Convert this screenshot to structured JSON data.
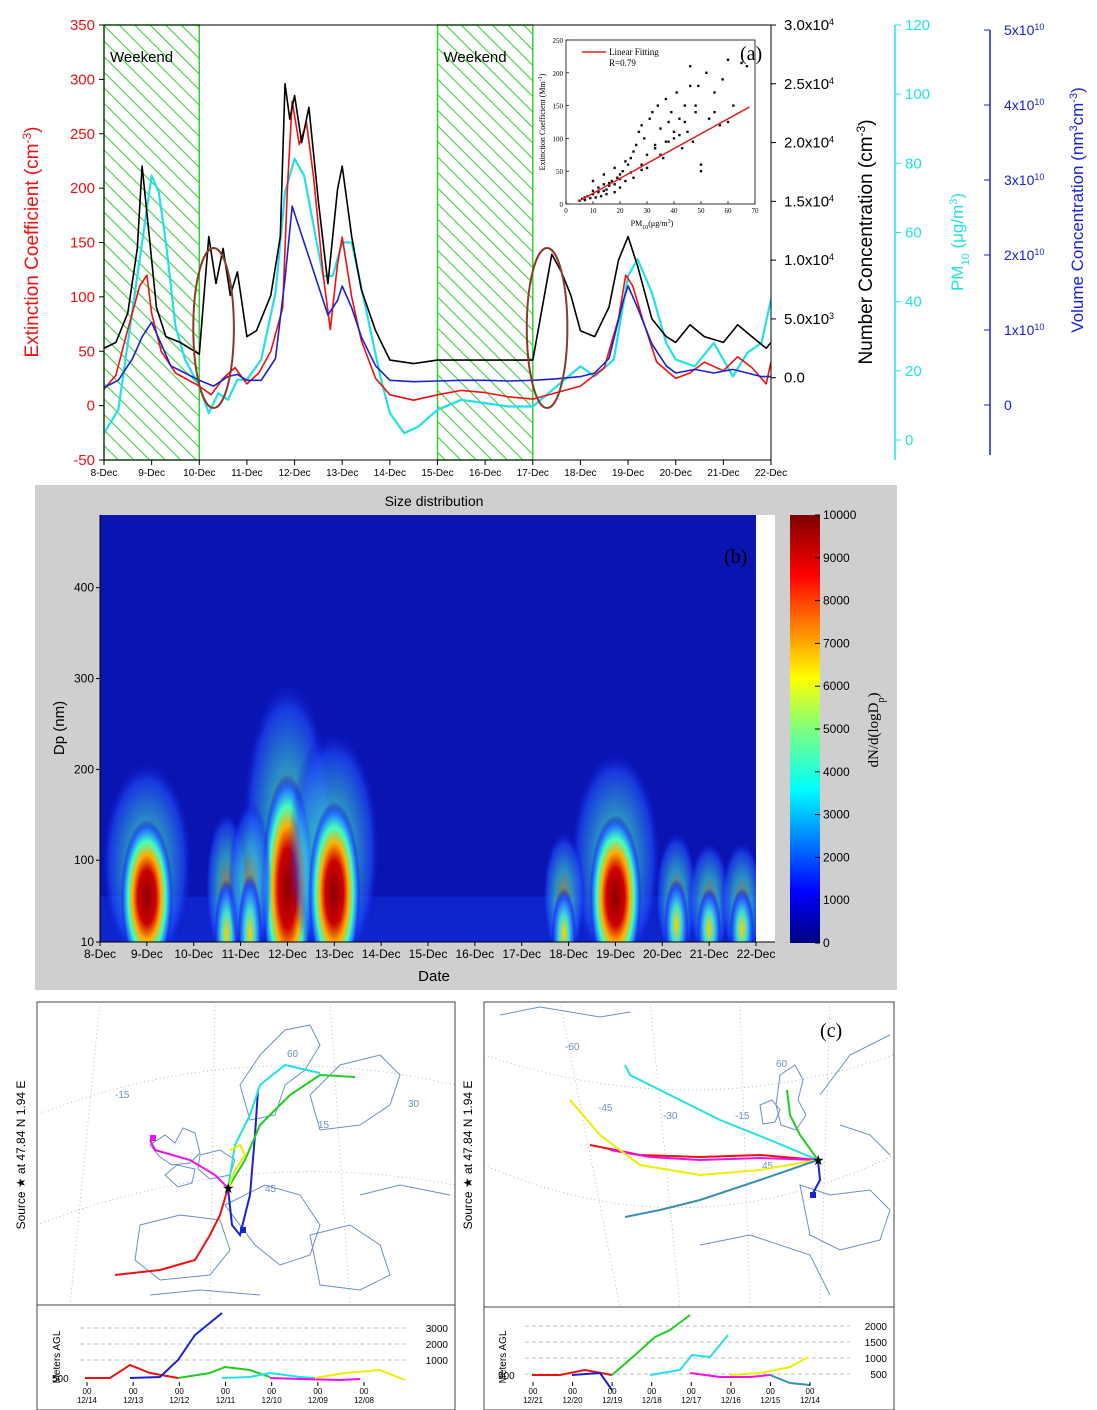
{
  "colors": {
    "extinction": "#ee1111",
    "number": "#000000",
    "pm10": "#22e0e8",
    "volume": "#1a22d0",
    "weekend_fill": "#33cc33",
    "ellipse": "#8b3a2a",
    "map_coast": "#6a8fc8"
  },
  "chart_data": [
    {
      "type": "line",
      "panel_label": "(a)",
      "x_ticks": [
        "8-Dec",
        "9-Dec",
        "10-Dec",
        "11-Dec",
        "12-Dec",
        "13-Dec",
        "14-Dec",
        "15-Dec",
        "16-Dec",
        "17-Dec",
        "18-Dec",
        "19-Dec",
        "20-Dec",
        "21-Dec",
        "22-Dec"
      ],
      "xlim_days": [
        8,
        22
      ],
      "annotations": [
        "Weekend",
        "Weekend"
      ],
      "weekend_spans": [
        [
          8,
          10
        ],
        [
          15,
          17
        ]
      ],
      "circled_spans": [
        [
          10.0,
          10.6
        ],
        [
          17.0,
          17.6
        ]
      ],
      "axes": {
        "extinction": {
          "label": "Extinction Coefficient (cm",
          "label_sup": "-3",
          "label_end": ")",
          "ticks": [
            "-50",
            "0",
            "50",
            "100",
            "150",
            "200",
            "250",
            "300",
            "350"
          ],
          "ylim": [
            -50,
            350
          ]
        },
        "number": {
          "label": "Number Concentration (cm",
          "label_sup": "-3",
          "label_end": ")",
          "ticks": [
            [
              "0.0",
              ""
            ],
            [
              "5.0x10",
              "3"
            ],
            [
              "1.0x10",
              "4"
            ],
            [
              "1.5x10",
              "4"
            ],
            [
              "2.0x10",
              "4"
            ],
            [
              "2.5x10",
              "4"
            ],
            [
              "3.0x10",
              "4"
            ]
          ],
          "ylim": [
            -7000,
            30000
          ]
        },
        "pm10": {
          "label": "PM",
          "label_sub": "10",
          "label_end": " (μg/m",
          "label_sup": "3",
          "label_close": ")",
          "ticks": [
            "0",
            "20",
            "40",
            "60",
            "80",
            "100",
            "120"
          ],
          "ylim": [
            -10,
            120
          ]
        },
        "volume": {
          "label": "Volume Concentration (nm",
          "label_sup": "3",
          "label_mid": "cm",
          "label_sup2": "-3",
          "label_close": ")",
          "ticks": [
            [
              "0",
              ""
            ],
            [
              "1x10",
              "10"
            ],
            [
              "2x10",
              "10"
            ],
            [
              "3x10",
              "10"
            ],
            [
              "4x10",
              "10"
            ],
            [
              "5x10",
              "10"
            ]
          ],
          "ylim": [
            -10000000000,
            50000000000
          ]
        }
      },
      "series": [
        {
          "name": "Extinction Coefficient",
          "axis": "extinction",
          "x": [
            8.0,
            8.25,
            8.5,
            8.75,
            8.9,
            9.0,
            9.2,
            9.5,
            10.0,
            10.25,
            10.5,
            10.75,
            11.0,
            11.25,
            11.5,
            11.75,
            11.85,
            11.95,
            12.1,
            12.25,
            12.4,
            12.6,
            12.75,
            12.9,
            13.0,
            13.2,
            13.4,
            13.7,
            14.0,
            14.5,
            15.0,
            15.5,
            16.0,
            16.5,
            17.0,
            17.5,
            18.0,
            18.5,
            18.8,
            18.95,
            19.1,
            19.3,
            19.6,
            20.0,
            20.3,
            20.6,
            21.0,
            21.3,
            21.6,
            21.9,
            22.0
          ],
          "y": [
            15,
            28,
            70,
            110,
            120,
            85,
            50,
            30,
            18,
            10,
            25,
            35,
            20,
            30,
            50,
            90,
            200,
            280,
            240,
            260,
            210,
            120,
            70,
            130,
            155,
            100,
            60,
            25,
            10,
            5,
            10,
            14,
            12,
            8,
            6,
            12,
            18,
            35,
            80,
            120,
            110,
            80,
            40,
            25,
            30,
            40,
            32,
            45,
            35,
            20,
            40
          ]
        },
        {
          "name": "Number Concentration",
          "axis": "number",
          "x": [
            8.0,
            8.25,
            8.5,
            8.7,
            8.8,
            8.95,
            9.1,
            9.3,
            9.6,
            10.0,
            10.1,
            10.2,
            10.35,
            10.5,
            10.65,
            10.8,
            11.0,
            11.2,
            11.5,
            11.7,
            11.8,
            11.9,
            12.0,
            12.15,
            12.3,
            12.5,
            12.7,
            12.9,
            13.0,
            13.2,
            13.4,
            13.7,
            14.0,
            14.5,
            15.0,
            15.5,
            16.0,
            16.5,
            17.0,
            17.2,
            17.4,
            17.6,
            17.8,
            18.0,
            18.3,
            18.6,
            18.8,
            19.0,
            19.2,
            19.5,
            19.8,
            20.0,
            20.3,
            20.6,
            21.0,
            21.3,
            21.6,
            21.9,
            22.0
          ],
          "y": [
            2500,
            3000,
            5500,
            11000,
            18000,
            12000,
            6000,
            3500,
            3000,
            2000,
            7000,
            12000,
            8000,
            11000,
            7000,
            9000,
            3500,
            4000,
            7000,
            12000,
            25000,
            22000,
            24000,
            20000,
            23000,
            15000,
            8000,
            16000,
            18000,
            12000,
            7500,
            4000,
            1500,
            1200,
            1500,
            1500,
            1500,
            1500,
            1500,
            6000,
            10500,
            9000,
            7000,
            4000,
            3500,
            6000,
            10000,
            12000,
            9500,
            5000,
            3500,
            3000,
            4500,
            3500,
            3000,
            4500,
            3500,
            2500,
            3000
          ]
        },
        {
          "name": "PM10",
          "axis": "pm10",
          "x": [
            8.0,
            8.3,
            8.6,
            8.8,
            9.0,
            9.15,
            9.3,
            9.5,
            9.7,
            10.0,
            10.2,
            10.4,
            10.6,
            10.8,
            11.0,
            11.3,
            11.6,
            11.8,
            12.0,
            12.2,
            12.4,
            12.6,
            12.8,
            13.0,
            13.2,
            13.5,
            13.8,
            14.0,
            14.3,
            14.6,
            15.0,
            15.5,
            16.0,
            16.5,
            17.0,
            17.5,
            18.0,
            18.3,
            18.7,
            19.0,
            19.2,
            19.5,
            19.8,
            20.0,
            20.4,
            20.8,
            21.2,
            21.5,
            21.8,
            22.0
          ],
          "y": [
            -2,
            5,
            35,
            55,
            75,
            70,
            55,
            30,
            20,
            12,
            4,
            10,
            8,
            14,
            14,
            20,
            40,
            70,
            80,
            75,
            60,
            45,
            45,
            55,
            55,
            35,
            15,
            4,
            -2,
            0,
            5,
            8,
            7,
            6,
            6,
            12,
            18,
            15,
            20,
            45,
            50,
            40,
            25,
            20,
            18,
            25,
            15,
            22,
            25,
            38
          ]
        },
        {
          "name": "Volume Concentration",
          "axis": "volume",
          "x": [
            8.0,
            8.3,
            8.6,
            8.8,
            9.0,
            9.2,
            9.4,
            9.7,
            10.0,
            10.3,
            10.6,
            10.8,
            11.0,
            11.3,
            11.6,
            11.8,
            11.95,
            12.1,
            12.3,
            12.5,
            12.7,
            12.9,
            13.0,
            13.2,
            13.4,
            13.7,
            14.0,
            14.5,
            15.0,
            15.5,
            16.0,
            16.5,
            17.0,
            17.5,
            18.0,
            18.3,
            18.6,
            18.9,
            19.0,
            19.2,
            19.5,
            19.8,
            20.0,
            20.4,
            20.8,
            21.2,
            21.5,
            21.8,
            22.0
          ],
          "y": [
            0,
            1000000000,
            4000000000,
            7000000000,
            9000000000,
            6000000000,
            3000000000,
            2000000000,
            1000000000,
            200000000,
            1500000000,
            1800000000,
            1000000000,
            1000000000,
            4000000000,
            15000000000,
            25000000000,
            22000000000,
            18000000000,
            14000000000,
            10000000000,
            12000000000,
            14000000000,
            11000000000,
            7000000000,
            3000000000,
            1000000000,
            800000000,
            900000000,
            1000000000,
            1000000000,
            900000000,
            1000000000,
            1200000000,
            1500000000,
            2000000000,
            4000000000,
            12000000000,
            14000000000,
            11000000000,
            6000000000,
            3000000000,
            2000000000,
            2500000000,
            2000000000,
            2500000000,
            2000000000,
            1500000000,
            1500000000
          ]
        }
      ],
      "inset": {
        "type": "scatter",
        "legend": "Linear Fitting",
        "r_text": "R=0.79",
        "xlabel": "PM",
        "xlabel_sub": "10",
        "xlabel_end": "(μg/m",
        "xlabel_sup": "3",
        "xlabel_close": ")",
        "ylabel": "Extinction Coefficient (Mm",
        "ylabel_sup": "-1",
        "ylabel_close": ")",
        "x_ticks": [
          "0",
          "10",
          "20",
          "30",
          "40",
          "50",
          "60",
          "70"
        ],
        "y_ticks": [
          "0",
          "50",
          "100",
          "150",
          "200",
          "250"
        ],
        "xlim": [
          0,
          70
        ],
        "ylim": [
          0,
          250
        ],
        "fit": [
          [
            5,
            5
          ],
          [
            68,
            148
          ]
        ],
        "x": [
          5,
          6,
          7,
          7,
          8,
          9,
          10,
          10,
          11,
          12,
          12,
          13,
          14,
          14,
          15,
          15,
          16,
          17,
          18,
          18,
          19,
          20,
          20,
          21,
          22,
          23,
          24,
          25,
          26,
          27,
          28,
          28,
          29,
          30,
          31,
          32,
          33,
          34,
          35,
          36,
          37,
          38,
          38,
          39,
          40,
          41,
          42,
          43,
          44,
          45,
          46,
          47,
          48,
          49,
          50,
          52,
          53,
          55,
          57,
          58,
          60,
          62,
          65,
          67,
          10,
          14,
          18,
          22,
          25,
          30,
          35,
          40,
          44,
          48,
          55,
          60,
          12,
          16,
          20,
          24,
          28,
          33,
          37,
          42,
          46,
          50
        ],
        "y": [
          5,
          8,
          10,
          6,
          12,
          9,
          15,
          20,
          10,
          18,
          25,
          12,
          30,
          20,
          22,
          15,
          28,
          35,
          30,
          18,
          40,
          45,
          25,
          50,
          35,
          60,
          70,
          40,
          90,
          110,
          60,
          120,
          100,
          75,
          130,
          140,
          90,
          150,
          115,
          70,
          160,
          125,
          95,
          140,
          100,
          170,
          130,
          85,
          150,
          110,
          210,
          95,
          140,
          180,
          60,
          200,
          130,
          170,
          120,
          190,
          220,
          150,
          215,
          210,
          35,
          45,
          55,
          65,
          80,
          55,
          75,
          110,
          125,
          150,
          140,
          125,
          20,
          32,
          38,
          48,
          52,
          85,
          95,
          105,
          180,
          50
        ]
      }
    },
    {
      "type": "heatmap",
      "panel_label": "(b)",
      "title": "Size distribution",
      "xlabel": "Date",
      "ylabel": "Dp (nm)",
      "x_ticks": [
        "8-Dec",
        "9-Dec",
        "10-Dec",
        "11-Dec",
        "12-Dec",
        "13-Dec",
        "14-Dec",
        "15-Dec",
        "16-Dec",
        "17-Dec",
        "18-Dec",
        "19-Dec",
        "20-Dec",
        "21-Dec",
        "22-Dec"
      ],
      "y_ticks": [
        "10",
        "100",
        "200",
        "300",
        "400"
      ],
      "ylim": [
        10,
        480
      ],
      "colorbar_label": "dN/d(logD",
      "colorbar_label_sub": "p",
      "colorbar_label_close": ")",
      "colorbar_ticks": [
        "0",
        "1000",
        "2000",
        "3000",
        "4000",
        "5000",
        "6000",
        "7000",
        "8000",
        "9000",
        "10000"
      ],
      "colorbar_range": [
        0,
        10000
      ],
      "hotspots": [
        {
          "day": 9.0,
          "dp_peak": 100,
          "dp_top": 180,
          "intensity": 10000
        },
        {
          "day": 12.0,
          "dp_peak": 120,
          "dp_top": 260,
          "intensity": 10000
        },
        {
          "day": 13.0,
          "dp_peak": 110,
          "dp_top": 210,
          "intensity": 10000
        },
        {
          "day": 19.0,
          "dp_peak": 100,
          "dp_top": 190,
          "intensity": 10000
        },
        {
          "day": 10.7,
          "dp_peak": 20,
          "dp_top": 130,
          "intensity": 4000
        },
        {
          "day": 11.2,
          "dp_peak": 20,
          "dp_top": 140,
          "intensity": 4000
        },
        {
          "day": 17.9,
          "dp_peak": 20,
          "dp_top": 110,
          "intensity": 4500
        },
        {
          "day": 20.3,
          "dp_peak": 40,
          "dp_top": 110,
          "intensity": 3500
        },
        {
          "day": 21.0,
          "dp_peak": 30,
          "dp_top": 100,
          "intensity": 3000
        },
        {
          "day": 21.7,
          "dp_peak": 30,
          "dp_top": 100,
          "intensity": 3000
        }
      ]
    },
    {
      "type": "other",
      "panel_label": "(c)",
      "maps": [
        {
          "side_label": "Source ★ at  47.84 N   1.94 E",
          "grid_labels": [
            "-15",
            "60",
            "30",
            "15",
            "45"
          ],
          "altitude_label": "Meters AGL",
          "altitude_ticks": [
            "1000",
            "2000",
            "3000"
          ],
          "altitude_start": "500",
          "time_ticks": [
            [
              "00",
              "12/14"
            ],
            [
              "00",
              "12/13"
            ],
            [
              "00",
              "12/12"
            ],
            [
              "00",
              "12/11"
            ],
            [
              "00",
              "12/10"
            ],
            [
              "00",
              "12/09"
            ],
            [
              "00",
              "12/08"
            ]
          ],
          "trajectory_colors": [
            "#ee1111",
            "#1a22d0",
            "#22cc22",
            "#22e0e8",
            "#ee11ee",
            "#eeee00"
          ]
        },
        {
          "side_label": "Source ★ at  47.84 N   1.94 E",
          "grid_labels": [
            "-60",
            "-45",
            "-30",
            "-15",
            "60",
            "45"
          ],
          "altitude_label": "Meters AGL",
          "altitude_ticks": [
            "500",
            "1000",
            "1500",
            "2000"
          ],
          "altitude_start": "500",
          "time_ticks": [
            [
              "00",
              "12/21"
            ],
            [
              "00",
              "12/20"
            ],
            [
              "00",
              "12/19"
            ],
            [
              "00",
              "12/18"
            ],
            [
              "00",
              "12/17"
            ],
            [
              "00",
              "12/16"
            ],
            [
              "00",
              "12/15"
            ],
            [
              "00",
              "12/14"
            ]
          ],
          "trajectory_colors": [
            "#ee1111",
            "#1a22d0",
            "#22cc22",
            "#22e0e8",
            "#ee11ee",
            "#eeee00",
            "#3a8fb0"
          ]
        }
      ]
    }
  ]
}
